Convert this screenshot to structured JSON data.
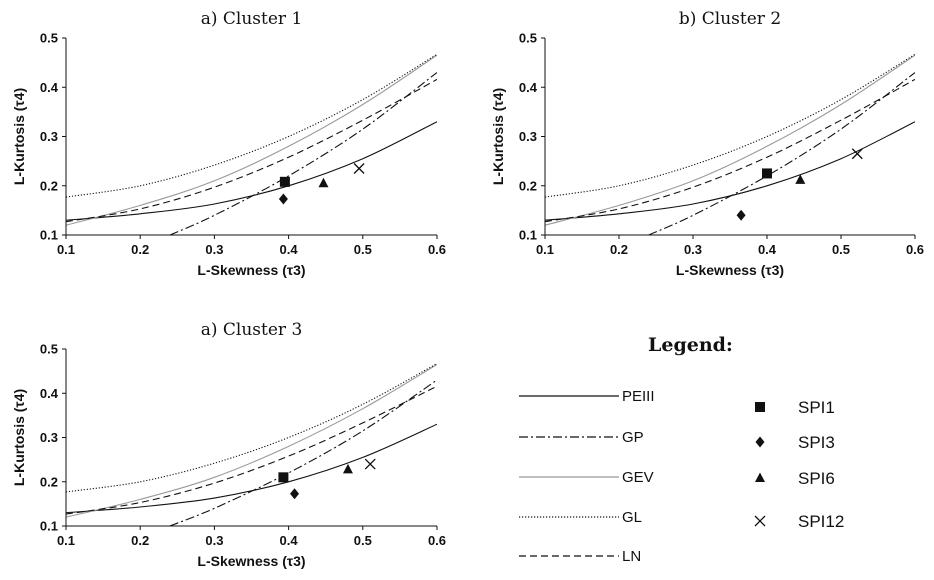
{
  "chart_data": [
    {
      "type": "line",
      "title": "a) Cluster 1",
      "xlabel": "L-Skewness",
      "xlabel_sym": "(τ3)",
      "ylabel": "L-Kurtosis",
      "ylabel_sym": "(τ4)",
      "xlim": [
        0.1,
        0.6
      ],
      "ylim": [
        0.1,
        0.5
      ],
      "xticks": [
        "0.1",
        "0.2",
        "0.3",
        "0.4",
        "0.5",
        "0.6"
      ],
      "yticks": [
        "0.1",
        "0.2",
        "0.3",
        "0.4",
        "0.5"
      ],
      "grid": false,
      "points": [
        {
          "name": "SPI1",
          "marker": "square",
          "x": 0.395,
          "y": 0.208
        },
        {
          "name": "SPI3",
          "marker": "diamond",
          "x": 0.393,
          "y": 0.173
        },
        {
          "name": "SPI6",
          "marker": "triangle",
          "x": 0.447,
          "y": 0.205
        },
        {
          "name": "SPI12",
          "marker": "cross",
          "x": 0.495,
          "y": 0.235
        }
      ]
    },
    {
      "type": "line",
      "title": "b) Cluster 2",
      "xlabel": "L-Skewness",
      "xlabel_sym": "(τ3)",
      "ylabel": "L-Kurtosis",
      "ylabel_sym": "(τ4)",
      "xlim": [
        0.1,
        0.6
      ],
      "ylim": [
        0.1,
        0.5
      ],
      "xticks": [
        "0.1",
        "0.2",
        "0.3",
        "0.4",
        "0.5",
        "0.6"
      ],
      "yticks": [
        "0.1",
        "0.2",
        "0.3",
        "0.4",
        "0.5"
      ],
      "grid": false,
      "points": [
        {
          "name": "SPI1",
          "marker": "square",
          "x": 0.4,
          "y": 0.225
        },
        {
          "name": "SPI3",
          "marker": "diamond",
          "x": 0.365,
          "y": 0.14
        },
        {
          "name": "SPI6",
          "marker": "triangle",
          "x": 0.445,
          "y": 0.212
        },
        {
          "name": "SPI12",
          "marker": "cross",
          "x": 0.522,
          "y": 0.265
        }
      ]
    },
    {
      "type": "line",
      "title": "a) Cluster 3",
      "xlabel": "L-Skewness",
      "xlabel_sym": "(τ3)",
      "ylabel": "L-Kurtosis",
      "ylabel_sym": "(τ4)",
      "xlim": [
        0.1,
        0.6
      ],
      "ylim": [
        0.1,
        0.5
      ],
      "xticks": [
        "0.1",
        "0.2",
        "0.3",
        "0.4",
        "0.5",
        "0.6"
      ],
      "yticks": [
        "0.1",
        "0.2",
        "0.3",
        "0.4",
        "0.5"
      ],
      "grid": false,
      "points": [
        {
          "name": "SPI1",
          "marker": "square",
          "x": 0.393,
          "y": 0.21
        },
        {
          "name": "SPI3",
          "marker": "diamond",
          "x": 0.408,
          "y": 0.173
        },
        {
          "name": "SPI6",
          "marker": "triangle",
          "x": 0.48,
          "y": 0.228
        },
        {
          "name": "SPI12",
          "marker": "cross",
          "x": 0.51,
          "y": 0.24
        }
      ]
    }
  ],
  "curves": [
    {
      "name": "PEIII",
      "dash": "solid",
      "color": "#111111",
      "x": [
        0.1,
        0.2,
        0.3,
        0.4,
        0.5,
        0.6
      ],
      "y": [
        0.13,
        0.143,
        0.163,
        0.2,
        0.255,
        0.33
      ]
    },
    {
      "name": "GP",
      "dash": "dashdot",
      "color": "#111111",
      "x": [
        0.24,
        0.3,
        0.4,
        0.5,
        0.6
      ],
      "y": [
        0.1,
        0.14,
        0.22,
        0.315,
        0.43
      ]
    },
    {
      "name": "GEV",
      "dash": "solid",
      "color": "#9a9a9a",
      "x": [
        0.1,
        0.2,
        0.3,
        0.4,
        0.5,
        0.6
      ],
      "y": [
        0.12,
        0.16,
        0.21,
        0.28,
        0.365,
        0.465
      ]
    },
    {
      "name": "GL",
      "dash": "dotted",
      "color": "#111111",
      "x": [
        0.1,
        0.2,
        0.3,
        0.4,
        0.5,
        0.6
      ],
      "y": [
        0.177,
        0.2,
        0.242,
        0.3,
        0.375,
        0.467
      ]
    },
    {
      "name": "LN",
      "dash": "dashed",
      "color": "#111111",
      "x": [
        0.1,
        0.2,
        0.3,
        0.4,
        0.5,
        0.6
      ],
      "y": [
        0.127,
        0.153,
        0.197,
        0.258,
        0.333,
        0.416
      ]
    }
  ],
  "legend": {
    "title": "Legend:",
    "lines": [
      "PEIII",
      "GP",
      "GEV",
      "GL",
      "LN"
    ],
    "markers": [
      {
        "name": "SPI1",
        "marker": "square"
      },
      {
        "name": "SPI3",
        "marker": "diamond"
      },
      {
        "name": "SPI6",
        "marker": "triangle"
      },
      {
        "name": "SPI12",
        "marker": "cross"
      }
    ]
  }
}
